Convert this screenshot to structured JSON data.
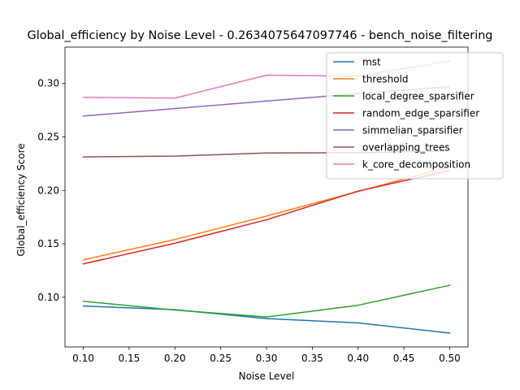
{
  "chart_data": {
    "type": "line",
    "title": "Global_efficiency by Noise Level - 0.2634075647097746 - bench_noise_filtering",
    "xlabel": "Noise Level",
    "ylabel": "Global_efficiency Score",
    "x": [
      0.1,
      0.2,
      0.3,
      0.4,
      0.5
    ],
    "xlim": [
      0.08,
      0.52
    ],
    "ylim": [
      0.0535,
      0.334
    ],
    "xticks": [
      "0.10",
      "0.15",
      "0.20",
      "0.25",
      "0.30",
      "0.35",
      "0.40",
      "0.45",
      "0.50"
    ],
    "yticks": [
      "0.10",
      "0.15",
      "0.20",
      "0.25",
      "0.30"
    ],
    "grid": false,
    "legend_position": "top-right",
    "series": [
      {
        "name": "mst",
        "color": "#1f77b4",
        "values": [
          0.0918,
          0.0884,
          0.08,
          0.076,
          0.0665
        ]
      },
      {
        "name": "threshold",
        "color": "#ff7f0e",
        "values": [
          0.135,
          0.154,
          0.176,
          0.199,
          0.222
        ]
      },
      {
        "name": "local_degree_sparsifier",
        "color": "#2ca02c",
        "values": [
          0.0962,
          0.088,
          0.0815,
          0.0925,
          0.1112
        ]
      },
      {
        "name": "random_edge_sparsifier",
        "color": "#d62728",
        "values": [
          0.1312,
          0.1505,
          0.1725,
          0.1993,
          0.2185
        ]
      },
      {
        "name": "simmelian_sparsifier",
        "color": "#9467bd",
        "values": [
          0.2695,
          0.2765,
          0.2835,
          0.2905,
          0.297
        ]
      },
      {
        "name": "overlapping_trees",
        "color": "#8c564b",
        "values": [
          0.2313,
          0.232,
          0.235,
          0.2352,
          0.237
        ]
      },
      {
        "name": "k_core_decomposition",
        "color": "#e377c2",
        "values": [
          0.287,
          0.2863,
          0.3078,
          0.3068,
          0.321
        ]
      }
    ]
  }
}
